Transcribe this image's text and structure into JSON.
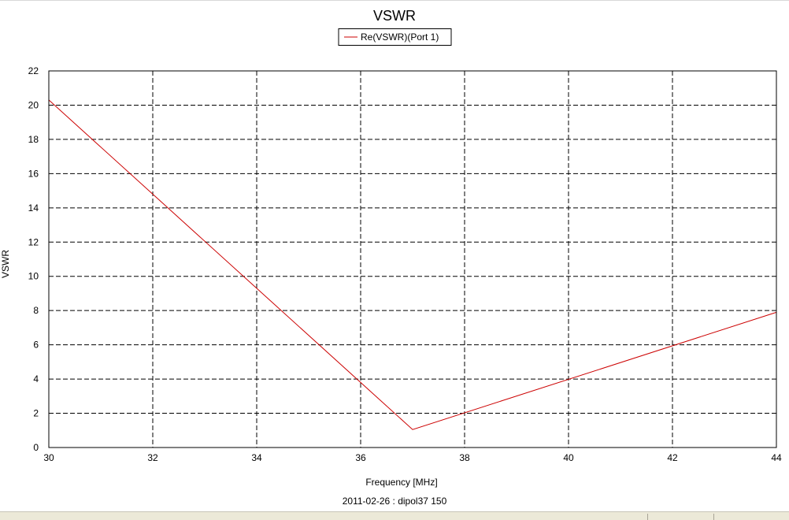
{
  "chart_data": {
    "type": "line",
    "title": "VSWR",
    "xlabel": "Frequency [MHz]",
    "ylabel": "VSWR",
    "footer": "2011-02-26 : dipol37 150",
    "xlim": [
      30,
      44
    ],
    "ylim": [
      0,
      22
    ],
    "xticks": [
      30,
      32,
      34,
      36,
      38,
      40,
      42,
      44
    ],
    "yticks": [
      0,
      2,
      4,
      6,
      8,
      10,
      12,
      14,
      16,
      18,
      20,
      22
    ],
    "grid": true,
    "grid_style": "dashed",
    "legend_position": "top-center",
    "series": [
      {
        "name": "Re(VSWR)(Port 1)",
        "color": "#cc0000",
        "x": [
          30,
          37,
          44
        ],
        "y": [
          20.3,
          1.05,
          7.9
        ]
      }
    ]
  }
}
